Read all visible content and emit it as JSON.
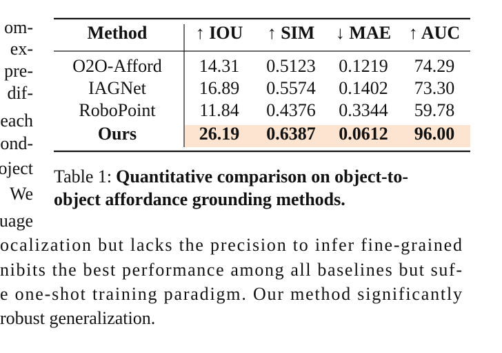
{
  "left_column": [
    "om-",
    "ex-",
    "pre-",
    "dif-",
    "each",
    "ond-",
    "oject",
    "We",
    "uage"
  ],
  "table": {
    "header": [
      "Method",
      "↑ IOU",
      "↑ SIM",
      "↓ MAE",
      "↑ AUC"
    ],
    "rows": [
      [
        "O2O-Afford",
        "14.31",
        "0.5123",
        "0.1219",
        "74.29"
      ],
      [
        "IAGNet",
        "16.89",
        "0.5574",
        "0.1402",
        "73.30"
      ],
      [
        "RoboPoint",
        "11.84",
        "0.4376",
        "0.3344",
        "59.78"
      ],
      [
        "Ours",
        "26.19",
        "0.6387",
        "0.0612",
        "96.00"
      ]
    ],
    "caption": {
      "label": "Table 1:",
      "text_line_1": "Quantitative comparison on object-to-",
      "text_line_2": "object affordance grounding methods."
    }
  },
  "paragraph": [
    "ocalization but lacks the precision to infer fine-grained",
    "nibits the best performance among all baselines but suf-",
    "e one-shot training paradigm.  Our method significantly",
    " robust generalization."
  ]
}
